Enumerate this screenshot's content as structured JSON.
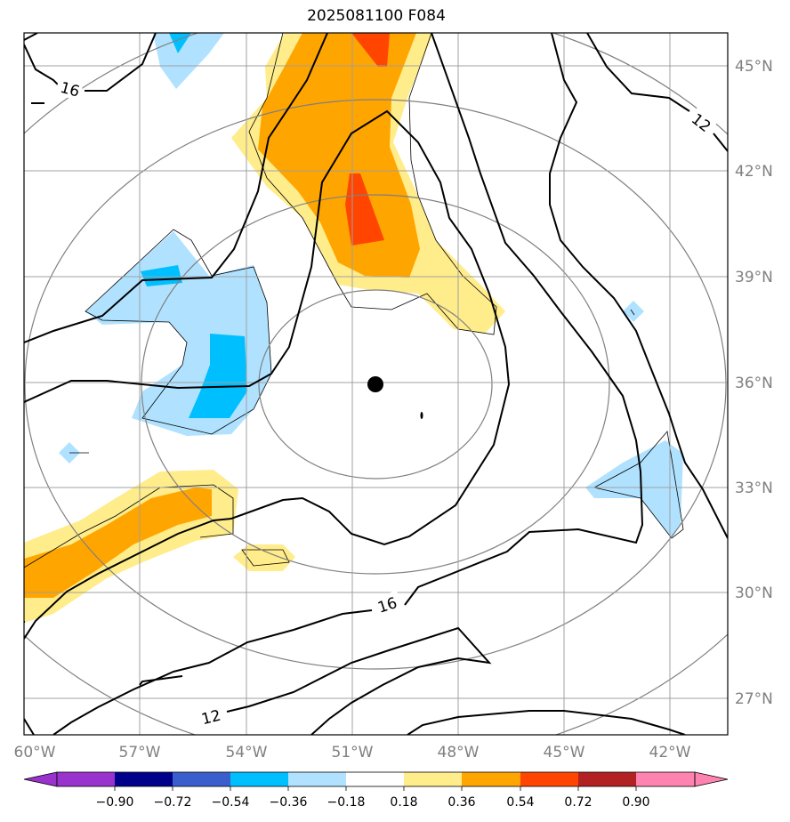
{
  "title": "2025081100 F084",
  "map": {
    "lon_ticks": [
      "60°W",
      "57°W",
      "54°W",
      "51°W",
      "48°W",
      "45°W",
      "42°W"
    ],
    "lat_ticks": [
      "45°N",
      "42°N",
      "39°N",
      "36°N",
      "33°N",
      "30°N",
      "27°N"
    ],
    "grid": true,
    "contour_labels": [
      "16",
      "12",
      "16",
      "12"
    ],
    "center_marker": "storm-center-dot",
    "colors": {
      "frame": "#000000",
      "grid": "#a0a0a0",
      "range_rings": "#808080",
      "contours": "#000000"
    }
  },
  "colorbar": {
    "labels": [
      "−0.90",
      "−0.72",
      "−0.54",
      "−0.36",
      "−0.18",
      "0.18",
      "0.36",
      "0.54",
      "0.72",
      "0.90"
    ],
    "colors": [
      "#9a32cd",
      "#00008b",
      "#3a5fcd",
      "#00bfff",
      "#b0e2ff",
      "#ffffff",
      "#ffec8b",
      "#ffa500",
      "#ff4500",
      "#b22222",
      "#ff83b1"
    ]
  }
}
